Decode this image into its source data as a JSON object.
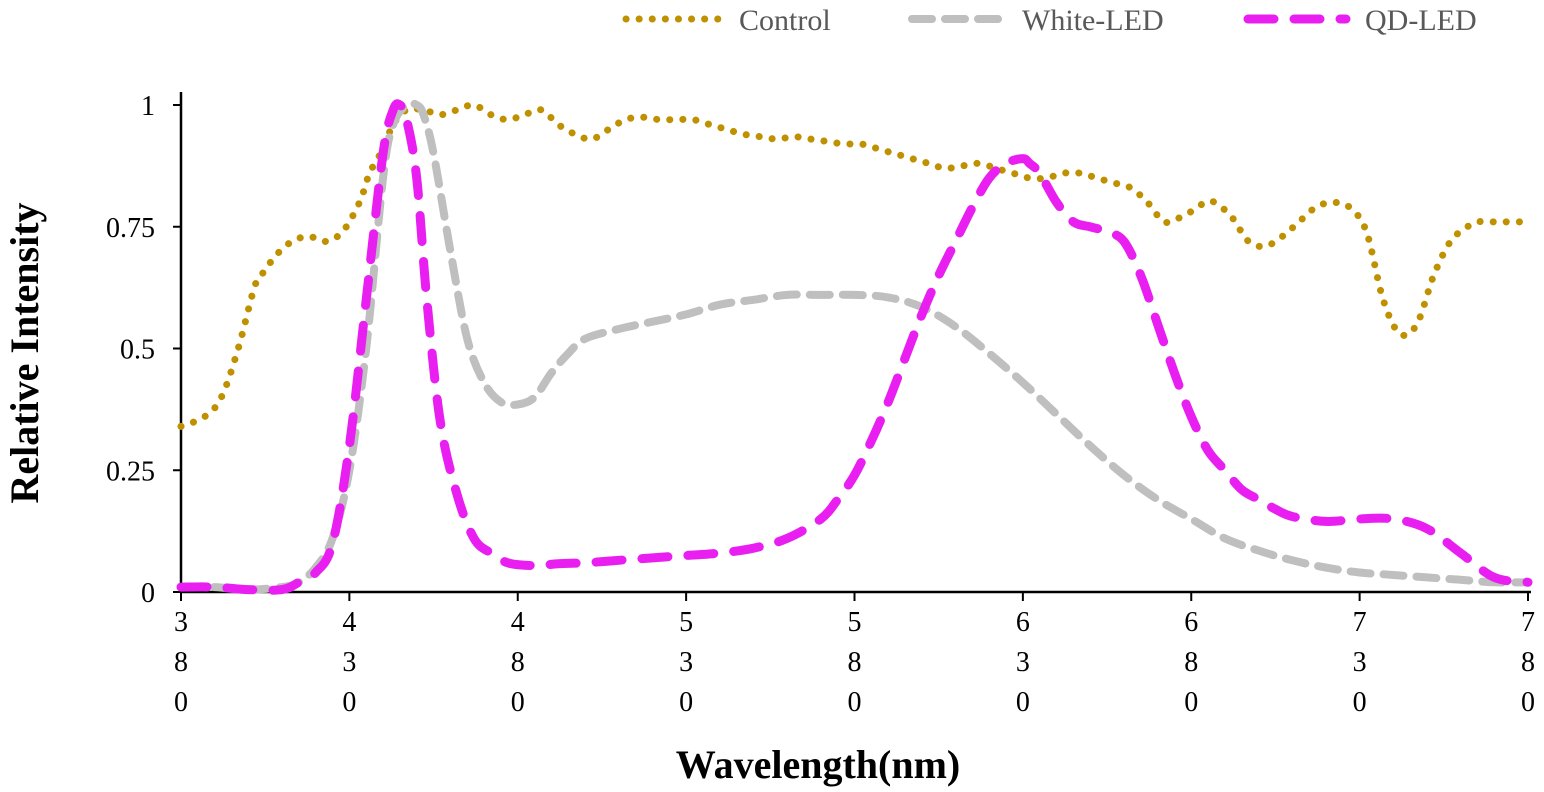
{
  "chart_data": {
    "type": "line",
    "title": "",
    "xlabel": "Wavelength(nm)",
    "ylabel": "Relative Intensity",
    "xlim": [
      380,
      780
    ],
    "ylim": [
      0,
      1
    ],
    "x_ticks": [
      {
        "value": 380,
        "digits": [
          "3",
          "8",
          "0"
        ]
      },
      {
        "value": 430,
        "digits": [
          "4",
          "3",
          "0"
        ]
      },
      {
        "value": 480,
        "digits": [
          "4",
          "8",
          "0"
        ]
      },
      {
        "value": 530,
        "digits": [
          "5",
          "3",
          "0"
        ]
      },
      {
        "value": 580,
        "digits": [
          "5",
          "8",
          "0"
        ]
      },
      {
        "value": 630,
        "digits": [
          "6",
          "3",
          "0"
        ]
      },
      {
        "value": 680,
        "digits": [
          "6",
          "8",
          "0"
        ]
      },
      {
        "value": 730,
        "digits": [
          "7",
          "3",
          "0"
        ]
      },
      {
        "value": 780,
        "digits": [
          "7",
          "8",
          "0"
        ]
      }
    ],
    "y_ticks": [
      {
        "value": 0,
        "label": "0"
      },
      {
        "value": 0.25,
        "label": "0.25"
      },
      {
        "value": 0.5,
        "label": "0.5"
      },
      {
        "value": 0.75,
        "label": "0.75"
      },
      {
        "value": 1,
        "label": "1"
      }
    ],
    "legend_position": "top-right",
    "series": [
      {
        "name": "Control",
        "color": "#bf9000",
        "style": "dotted",
        "x": [
          380,
          387,
          392,
          397,
          402,
          405,
          408,
          413,
          418,
          423,
          428,
          433,
          436,
          440,
          443,
          447,
          452,
          457,
          462,
          467,
          472,
          477,
          482,
          487,
          492,
          497,
          502,
          507,
          512,
          517,
          522,
          527,
          532,
          537,
          542,
          547,
          552,
          557,
          562,
          567,
          572,
          577,
          582,
          587,
          592,
          597,
          602,
          607,
          612,
          617,
          622,
          627,
          632,
          637,
          642,
          647,
          652,
          657,
          662,
          667,
          672,
          677,
          682,
          684,
          687,
          692,
          697,
          702,
          707,
          712,
          717,
          722,
          727,
          732,
          737,
          742,
          747,
          752,
          757,
          762,
          765,
          767,
          770,
          773,
          777,
          780
        ],
        "y": [
          0.34,
          0.36,
          0.4,
          0.5,
          0.63,
          0.66,
          0.69,
          0.72,
          0.73,
          0.72,
          0.74,
          0.8,
          0.86,
          0.91,
          0.96,
          0.99,
          0.99,
          0.98,
          0.99,
          1.0,
          0.98,
          0.97,
          0.98,
          0.99,
          0.96,
          0.94,
          0.93,
          0.95,
          0.97,
          0.975,
          0.97,
          0.97,
          0.97,
          0.96,
          0.95,
          0.94,
          0.935,
          0.93,
          0.935,
          0.93,
          0.925,
          0.92,
          0.92,
          0.91,
          0.9,
          0.89,
          0.88,
          0.87,
          0.875,
          0.88,
          0.87,
          0.86,
          0.85,
          0.85,
          0.86,
          0.86,
          0.85,
          0.84,
          0.83,
          0.8,
          0.76,
          0.77,
          0.79,
          0.8,
          0.8,
          0.77,
          0.72,
          0.71,
          0.73,
          0.76,
          0.79,
          0.8,
          0.79,
          0.74,
          0.6,
          0.53,
          0.55,
          0.65,
          0.72,
          0.75,
          0.76,
          0.76,
          0.76,
          0.76,
          0.76,
          0.76
        ]
      },
      {
        "name": "White-LED",
        "color": "#bfbfbf",
        "style": "dashed",
        "x": [
          380,
          390,
          400,
          410,
          415,
          420,
          425,
          430,
          435,
          440,
          443,
          447,
          450,
          452,
          455,
          460,
          465,
          470,
          475,
          480,
          485,
          490,
          495,
          500,
          510,
          520,
          530,
          540,
          550,
          560,
          570,
          580,
          590,
          600,
          610,
          620,
          630,
          640,
          650,
          660,
          670,
          680,
          690,
          700,
          710,
          720,
          730,
          740,
          750,
          760,
          770,
          780
        ],
        "y": [
          0.01,
          0.01,
          0.005,
          0.01,
          0.02,
          0.05,
          0.11,
          0.25,
          0.5,
          0.85,
          0.96,
          1.0,
          1.0,
          0.98,
          0.9,
          0.7,
          0.52,
          0.43,
          0.39,
          0.385,
          0.4,
          0.45,
          0.49,
          0.52,
          0.54,
          0.555,
          0.57,
          0.59,
          0.6,
          0.61,
          0.61,
          0.61,
          0.605,
          0.585,
          0.545,
          0.49,
          0.43,
          0.365,
          0.3,
          0.24,
          0.19,
          0.15,
          0.11,
          0.085,
          0.065,
          0.05,
          0.04,
          0.035,
          0.03,
          0.025,
          0.02,
          0.02
        ]
      },
      {
        "name": "QD-LED",
        "color": "#e81ff0",
        "style": "dashed",
        "x": [
          380,
          390,
          400,
          410,
          415,
          420,
          425,
          430,
          435,
          440,
          443,
          445,
          447,
          450,
          453,
          457,
          462,
          467,
          472,
          477,
          482,
          487,
          492,
          500,
          510,
          520,
          530,
          540,
          550,
          560,
          570,
          575,
          580,
          585,
          590,
          595,
          600,
          605,
          610,
          615,
          620,
          625,
          630,
          632,
          635,
          640,
          645,
          650,
          655,
          660,
          665,
          670,
          675,
          680,
          685,
          690,
          695,
          700,
          705,
          710,
          720,
          730,
          740,
          750,
          760,
          770,
          780
        ],
        "y": [
          0.01,
          0.01,
          0.005,
          0.005,
          0.02,
          0.04,
          0.1,
          0.3,
          0.6,
          0.9,
          0.99,
          1.0,
          0.97,
          0.85,
          0.6,
          0.35,
          0.2,
          0.11,
          0.08,
          0.06,
          0.055,
          0.055,
          0.058,
          0.06,
          0.065,
          0.07,
          0.075,
          0.08,
          0.09,
          0.11,
          0.15,
          0.19,
          0.24,
          0.31,
          0.39,
          0.48,
          0.57,
          0.65,
          0.72,
          0.79,
          0.85,
          0.88,
          0.89,
          0.88,
          0.86,
          0.8,
          0.76,
          0.75,
          0.74,
          0.72,
          0.65,
          0.55,
          0.45,
          0.36,
          0.29,
          0.25,
          0.21,
          0.19,
          0.17,
          0.155,
          0.145,
          0.15,
          0.15,
          0.13,
          0.08,
          0.03,
          0.02
        ]
      }
    ]
  }
}
